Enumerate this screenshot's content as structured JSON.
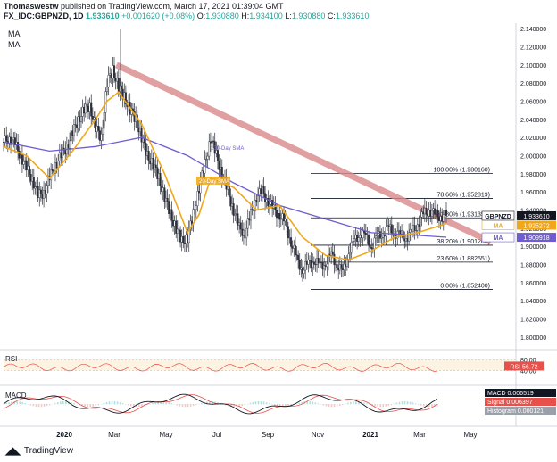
{
  "header": {
    "publisher": "Thomaswestw",
    "published_text": "published on TradingView.com, March 17, 2021 01:39:04 GMT",
    "symbol": "FX_IDC:GBPNZD, 1D",
    "last": "1.933610",
    "change": "+0.001620 (+0.08%)",
    "o_label": "O:",
    "o": "1.930880",
    "h_label": "H:",
    "h": "1.934100",
    "l_label": "L:",
    "l": "1.930880",
    "c_label": "C:",
    "c": "1.933610"
  },
  "indicators": {
    "ma1": "MA",
    "ma2": "MA"
  },
  "annotations": {
    "sma100": "100-Day SMA",
    "sma20": "20-Day SMA"
  },
  "price_tags": [
    {
      "label": "GBPNZD",
      "value": "1.933610",
      "color": "#131722"
    },
    {
      "label": "MA",
      "value": "1.925272",
      "color": "#f0a81a"
    },
    {
      "label": "MA",
      "value": "1.909918",
      "color": "#6f5cd1"
    }
  ],
  "fib_levels": [
    {
      "pct": "100.00%",
      "price": "(1.980160)"
    },
    {
      "pct": "78.60%",
      "price": "(1.952819)"
    },
    {
      "pct": "61.80%",
      "price": "(1.931357)"
    },
    {
      "pct": "38.20%",
      "price": "(1.901204)"
    },
    {
      "pct": "23.60%",
      "price": "(1.882551)"
    },
    {
      "pct": "0.00%",
      "price": "(1.852400)"
    }
  ],
  "rsi": {
    "label": "RSI",
    "tag_label": "RSI",
    "value": "56.72",
    "levels": [
      "80.00",
      "40.00"
    ]
  },
  "macd": {
    "label": "MACD",
    "tags": [
      {
        "label": "MACD",
        "value": "0.006519",
        "color": "#131722"
      },
      {
        "label": "Signal",
        "value": "0.006397",
        "color": "#e8504a"
      },
      {
        "label": "Histogram",
        "value": "0.000121",
        "color": "#9aa0aa"
      }
    ]
  },
  "footer": {
    "brand": "TradingView"
  },
  "colors": {
    "candle": "#2a2e39",
    "ma_fast": "#f0a81a",
    "ma_slow": "#6f5cd1",
    "trendline": "#d9898b",
    "rsi": "#e8504a",
    "macd_line": "#131722",
    "signal": "#e8504a"
  },
  "chart_data": {
    "type": "line",
    "title": "FX_IDC:GBPNZD, 1D",
    "x_ticks": [
      "2020",
      "Mar",
      "May",
      "Jul",
      "Sep",
      "Nov",
      "2021",
      "Mar",
      "May"
    ],
    "y_ticks": [
      "2.140000",
      "2.120000",
      "2.100000",
      "2.080000",
      "2.060000",
      "2.040000",
      "2.020000",
      "2.000000",
      "1.980000",
      "1.960000",
      "1.940000",
      "1.920000",
      "1.900000",
      "1.880000",
      "1.860000",
      "1.840000",
      "1.820000",
      "1.800000"
    ],
    "ylim": [
      1.79,
      2.146
    ],
    "series": [
      {
        "name": "GBPNZD",
        "x": [
          0,
          4,
          8,
          12,
          16,
          20,
          24,
          28,
          32,
          36,
          40,
          44,
          48,
          52,
          56,
          60,
          64,
          68,
          72,
          76,
          80,
          84,
          88,
          92,
          96,
          100,
          104,
          108,
          112,
          116,
          120,
          124,
          128,
          132,
          136,
          140,
          144,
          148,
          152,
          156,
          160,
          164,
          168,
          172,
          176,
          180,
          184,
          188,
          192,
          196,
          200,
          204,
          208,
          212,
          216,
          220,
          224,
          228,
          232,
          236,
          240,
          244,
          248,
          252,
          256,
          260,
          264,
          268,
          272,
          276,
          280,
          284,
          288,
          292,
          296,
          300,
          304,
          308
        ],
        "values": [
          2.015,
          2.02,
          2.012,
          2.0,
          1.985,
          1.975,
          1.955,
          1.96,
          1.975,
          1.99,
          2.0,
          2.01,
          2.025,
          2.04,
          2.05,
          2.055,
          2.03,
          2.02,
          2.08,
          2.095,
          2.075,
          2.065,
          2.05,
          2.04,
          2.02,
          2.0,
          1.99,
          1.975,
          1.955,
          1.935,
          1.92,
          1.905,
          1.91,
          1.935,
          1.965,
          1.99,
          2.02,
          2.0,
          1.98,
          1.96,
          1.94,
          1.92,
          1.915,
          1.935,
          1.955,
          1.96,
          1.95,
          1.94,
          1.935,
          1.925,
          1.905,
          1.885,
          1.875,
          1.88,
          1.885,
          1.878,
          1.882,
          1.89,
          1.88,
          1.87,
          1.895,
          1.905,
          1.915,
          1.91,
          1.9,
          1.91,
          1.915,
          1.92,
          1.915,
          1.912,
          1.91,
          1.915,
          1.925,
          1.935,
          1.94,
          1.935,
          1.933,
          1.934
        ]
      },
      {
        "name": "MA",
        "x": [
          0,
          16,
          32,
          48,
          64,
          72,
          80,
          96,
          112,
          128,
          136,
          144,
          160,
          176,
          192,
          208,
          224,
          240,
          256,
          272,
          288,
          308
        ],
        "values": [
          2.01,
          2.0,
          1.975,
          2.005,
          2.04,
          2.06,
          2.07,
          2.035,
          1.98,
          1.915,
          1.935,
          1.975,
          1.965,
          1.94,
          1.945,
          1.91,
          1.89,
          1.885,
          1.895,
          1.91,
          1.915,
          1.925
        ]
      },
      {
        "name": "MA",
        "x": [
          0,
          32,
          64,
          96,
          128,
          160,
          192,
          224,
          256,
          288,
          308
        ],
        "values": [
          2.015,
          2.005,
          2.01,
          2.02,
          2.0,
          1.97,
          1.945,
          1.93,
          1.915,
          1.912,
          1.91
        ]
      }
    ],
    "trendline": {
      "from": [
        76,
        2.1
      ],
      "to": [
        308,
        1.93
      ]
    },
    "fib_levels": [
      1.98016,
      1.952819,
      1.931357,
      1.901204,
      1.882551,
      1.8524
    ]
  }
}
